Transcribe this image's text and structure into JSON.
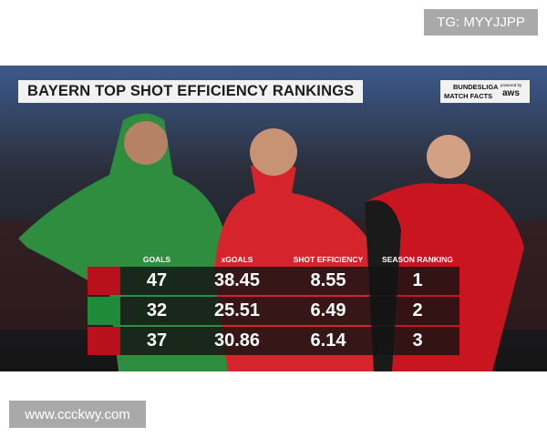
{
  "watermark_top": "TG: MYYJJPP",
  "graphic": {
    "title": "BAYERN TOP SHOT EFFICIENCY RANKINGS",
    "logo": {
      "brand": "BUNDESLIGA",
      "product": "MATCH FACTS",
      "powered": "powered by",
      "sponsor": "aws"
    },
    "table": {
      "headers": [
        "GOALS",
        "xGOALS",
        "SHOT EFFICIENCY",
        "SEASON RANKING"
      ],
      "rows": [
        [
          47,
          38.45,
          8.55,
          1
        ],
        [
          32,
          25.51,
          6.49,
          2
        ],
        [
          37,
          30.86,
          6.14,
          3
        ]
      ]
    }
  },
  "watermark_bottom": "www.ccckwy.com"
}
